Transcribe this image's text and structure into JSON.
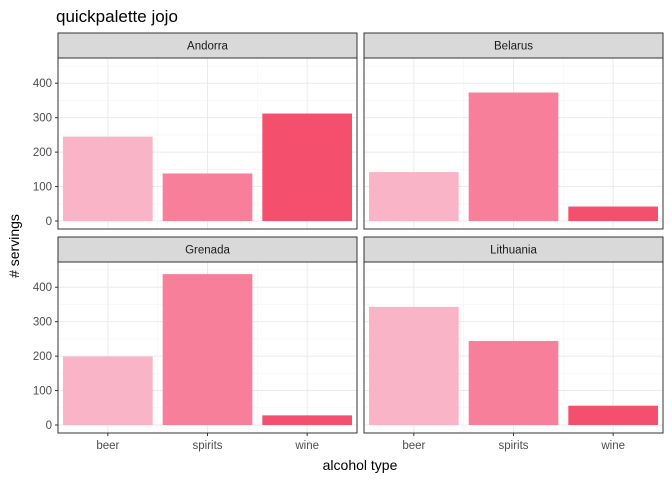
{
  "chart_data": {
    "type": "bar",
    "title": "quickpalette jojo",
    "xlabel": "alcohol type",
    "ylabel": "# servings",
    "categories": [
      "beer",
      "spirits",
      "wine"
    ],
    "colors": [
      "#f9b4c8",
      "#f77f99",
      "#f4506e"
    ],
    "ylim": [
      0,
      450
    ],
    "yticks": [
      0,
      100,
      200,
      300,
      400
    ],
    "grid": true,
    "facets": [
      {
        "name": "Andorra",
        "values": [
          245,
          138,
          312
        ]
      },
      {
        "name": "Belarus",
        "values": [
          142,
          373,
          42
        ]
      },
      {
        "name": "Grenada",
        "values": [
          199,
          438,
          28
        ]
      },
      {
        "name": "Lithuania",
        "values": [
          343,
          244,
          56
        ]
      }
    ]
  }
}
